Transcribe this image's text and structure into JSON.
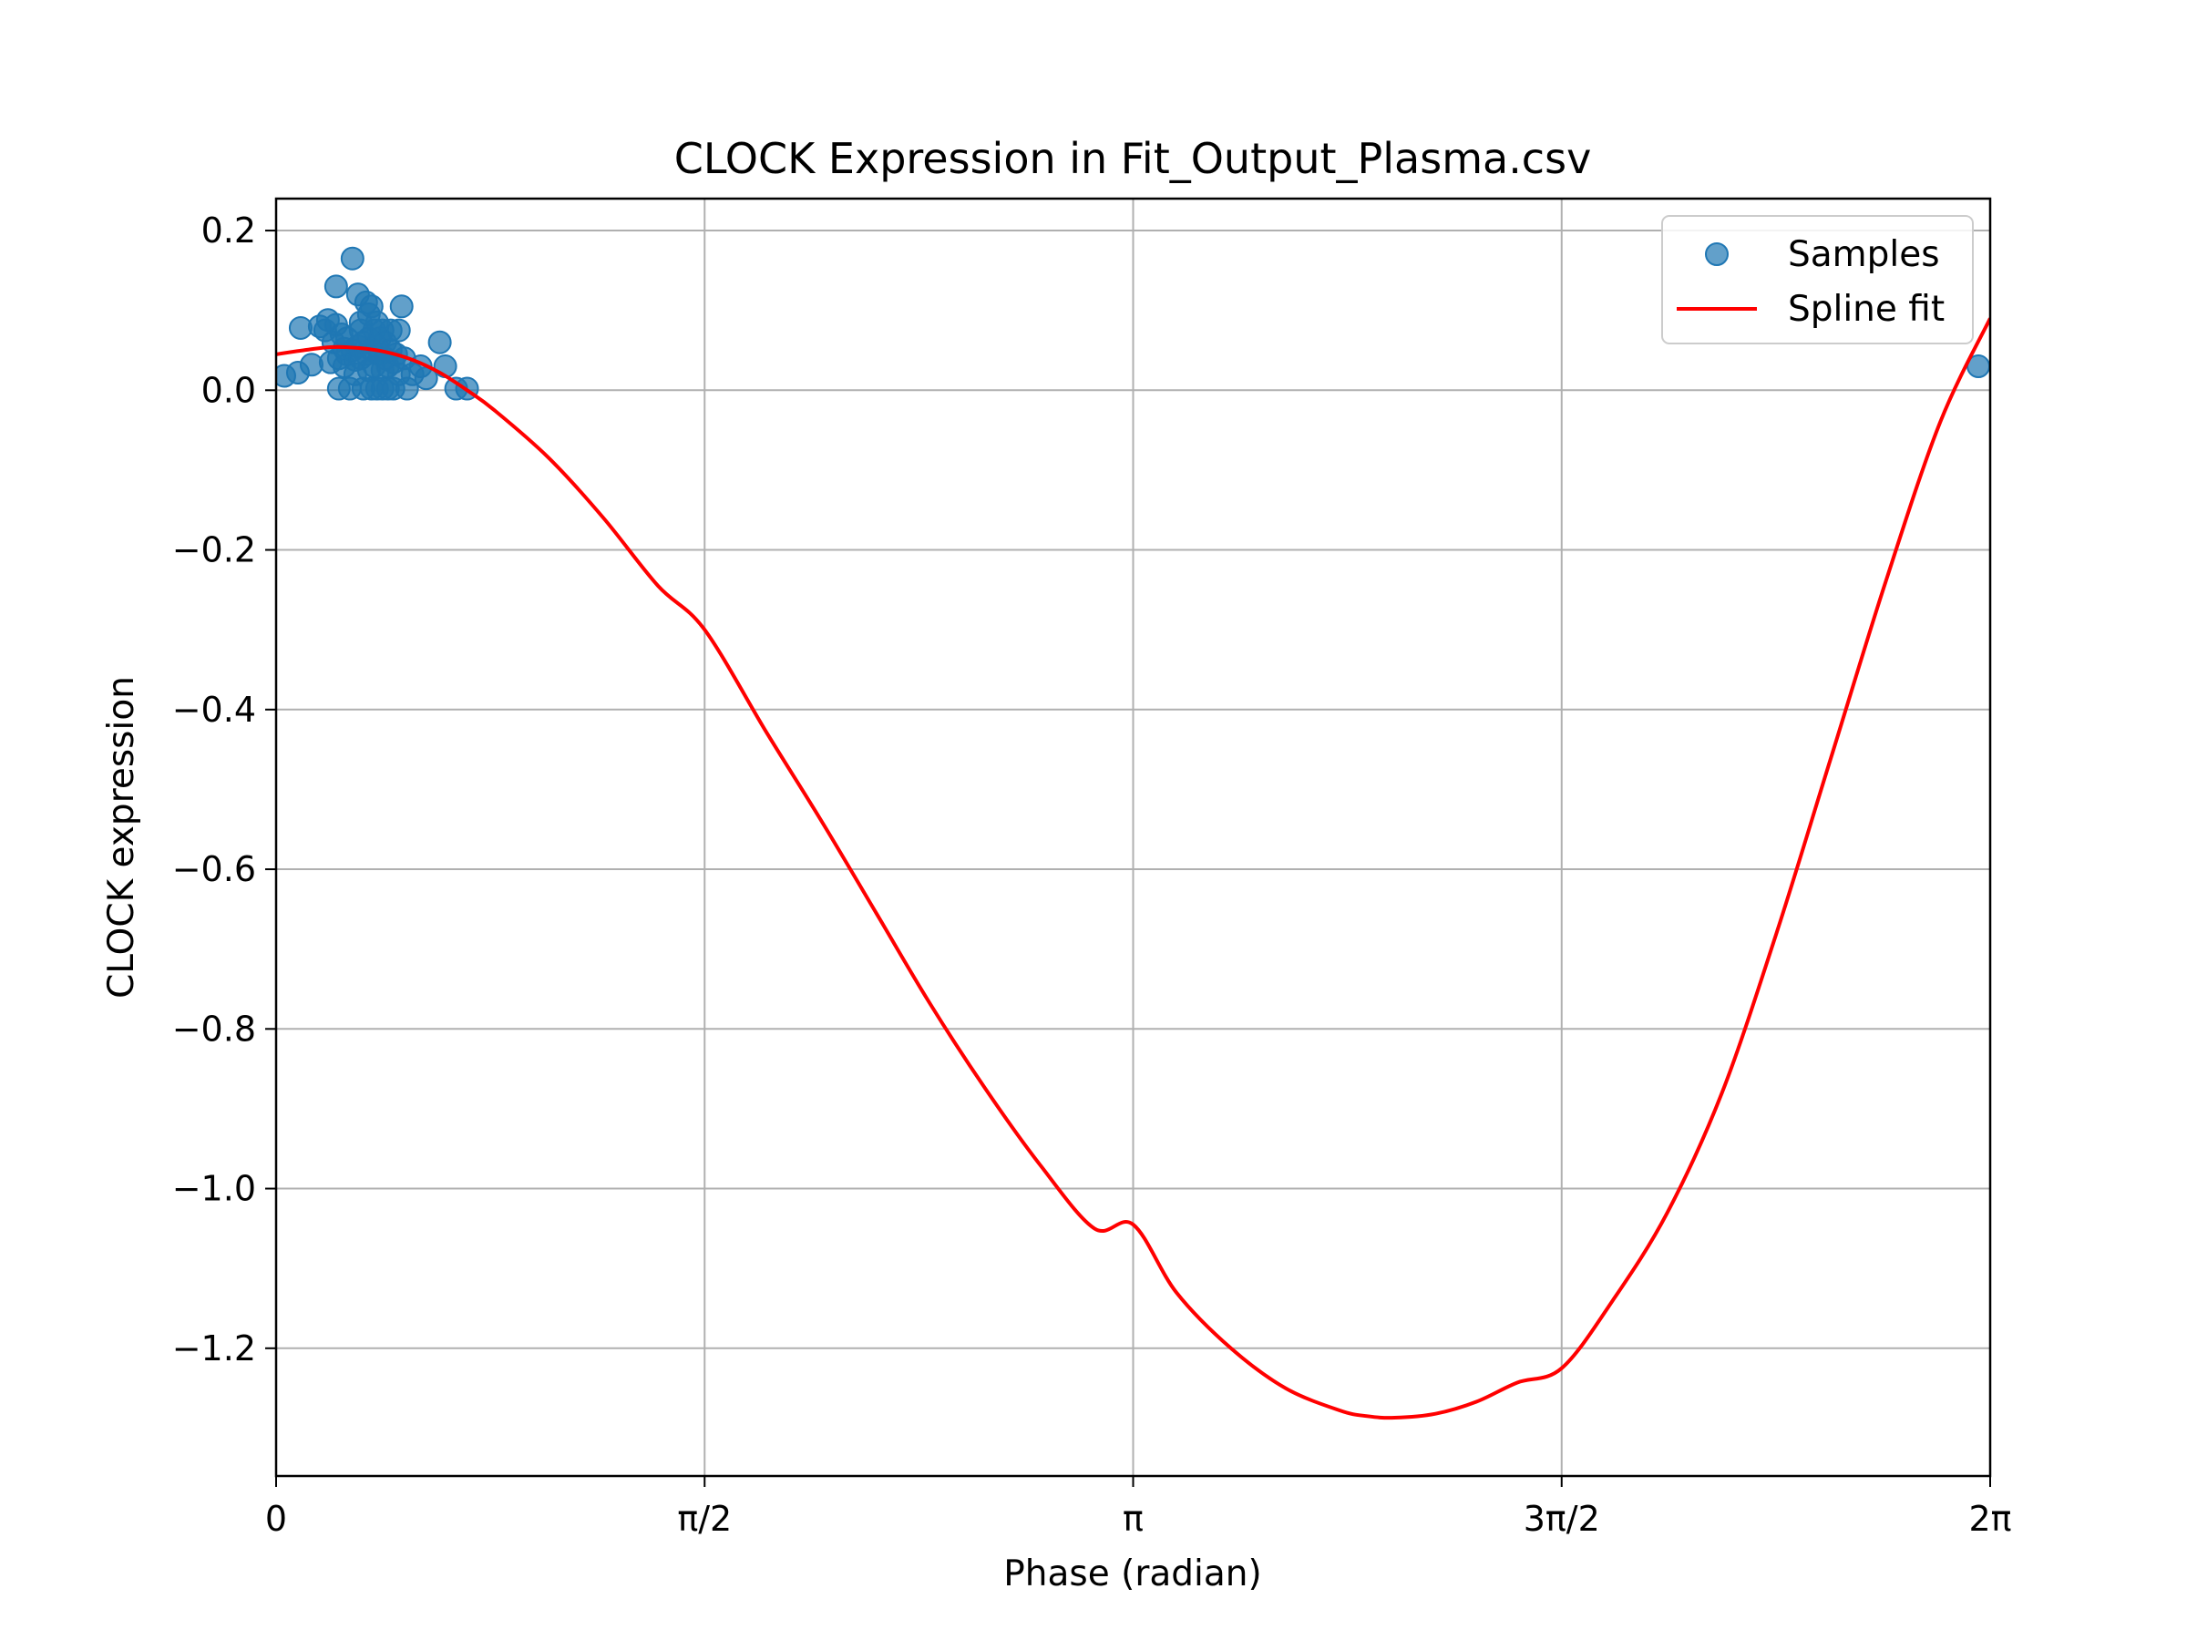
{
  "chart_data": {
    "type": "scatter",
    "title": "CLOCK Expression in Fit_Output_Plasma.csv",
    "xlabel": "Phase (radian)",
    "ylabel": "CLOCK expression",
    "xlim": [
      0,
      6.2832
    ],
    "ylim": [
      -1.36,
      0.24
    ],
    "grid": true,
    "legend_position": "top-right",
    "x_ticks": [
      {
        "value": 0,
        "label": "0"
      },
      {
        "value": 1.5708,
        "label": "π/2"
      },
      {
        "value": 3.1416,
        "label": "π"
      },
      {
        "value": 4.7124,
        "label": "3π/2"
      },
      {
        "value": 6.2832,
        "label": "2π"
      }
    ],
    "y_ticks": [
      {
        "value": 0.2,
        "label": "0.2"
      },
      {
        "value": 0.0,
        "label": "0.0"
      },
      {
        "value": -0.2,
        "label": "−0.2"
      },
      {
        "value": -0.4,
        "label": "−0.4"
      },
      {
        "value": -0.6,
        "label": "−0.6"
      },
      {
        "value": -0.8,
        "label": "−0.8"
      },
      {
        "value": -1.0,
        "label": "−1.0"
      },
      {
        "value": -1.2,
        "label": "−1.2"
      }
    ],
    "series": [
      {
        "name": "Samples",
        "kind": "scatter",
        "color": "#1f77b4",
        "points": [
          [
            0.03,
            0.018
          ],
          [
            0.08,
            0.022
          ],
          [
            0.09,
            0.078
          ],
          [
            0.13,
            0.032
          ],
          [
            0.16,
            0.08
          ],
          [
            0.18,
            0.075
          ],
          [
            0.19,
            0.088
          ],
          [
            0.2,
            0.035
          ],
          [
            0.21,
            0.06
          ],
          [
            0.22,
            0.082
          ],
          [
            0.22,
            0.13
          ],
          [
            0.23,
            0.002
          ],
          [
            0.23,
            0.04
          ],
          [
            0.24,
            0.07
          ],
          [
            0.25,
            0.052
          ],
          [
            0.25,
            0.03
          ],
          [
            0.26,
            0.065
          ],
          [
            0.26,
            0.045
          ],
          [
            0.27,
            0.002
          ],
          [
            0.28,
            0.05
          ],
          [
            0.28,
            0.165
          ],
          [
            0.29,
            0.038
          ],
          [
            0.29,
            0.02
          ],
          [
            0.3,
            0.055
          ],
          [
            0.3,
            0.12
          ],
          [
            0.31,
            0.075
          ],
          [
            0.31,
            0.04
          ],
          [
            0.31,
            0.085
          ],
          [
            0.32,
            0.002
          ],
          [
            0.32,
            0.06
          ],
          [
            0.33,
            0.045
          ],
          [
            0.33,
            0.11
          ],
          [
            0.34,
            0.025
          ],
          [
            0.34,
            0.095
          ],
          [
            0.34,
            0.065
          ],
          [
            0.35,
            0.002
          ],
          [
            0.35,
            0.05
          ],
          [
            0.35,
            0.105
          ],
          [
            0.36,
            0.075
          ],
          [
            0.36,
            0.03
          ],
          [
            0.37,
            0.002
          ],
          [
            0.37,
            0.055
          ],
          [
            0.37,
            0.085
          ],
          [
            0.38,
            0.045
          ],
          [
            0.38,
            0.065
          ],
          [
            0.39,
            0.002
          ],
          [
            0.39,
            0.025
          ],
          [
            0.39,
            0.075
          ],
          [
            0.4,
            0.04
          ],
          [
            0.4,
            0.06
          ],
          [
            0.41,
            0.002
          ],
          [
            0.41,
            0.03
          ],
          [
            0.42,
            0.05
          ],
          [
            0.42,
            0.075
          ],
          [
            0.43,
            0.002
          ],
          [
            0.43,
            0.035
          ],
          [
            0.44,
            0.045
          ],
          [
            0.45,
            0.075
          ],
          [
            0.45,
            0.02
          ],
          [
            0.46,
            0.105
          ],
          [
            0.47,
            0.04
          ],
          [
            0.48,
            0.002
          ],
          [
            0.5,
            0.02
          ],
          [
            0.53,
            0.03
          ],
          [
            0.55,
            0.015
          ],
          [
            0.6,
            0.06
          ],
          [
            0.62,
            0.03
          ],
          [
            0.66,
            0.002
          ],
          [
            0.7,
            0.002
          ],
          [
            6.24,
            0.03
          ]
        ]
      },
      {
        "name": "Spline fit",
        "kind": "line",
        "color": "#ff0000",
        "points": [
          [
            0.0,
            0.045
          ],
          [
            0.1,
            0.05
          ],
          [
            0.2,
            0.054
          ],
          [
            0.3,
            0.053
          ],
          [
            0.4,
            0.048
          ],
          [
            0.5,
            0.038
          ],
          [
            0.6,
            0.022
          ],
          [
            0.7,
            0.0
          ],
          [
            0.8,
            -0.025
          ],
          [
            1.0,
            -0.085
          ],
          [
            1.2,
            -0.16
          ],
          [
            1.4,
            -0.245
          ],
          [
            1.5708,
            -0.3
          ],
          [
            1.8,
            -0.43
          ],
          [
            2.0,
            -0.54
          ],
          [
            2.2,
            -0.655
          ],
          [
            2.4,
            -0.77
          ],
          [
            2.6,
            -0.875
          ],
          [
            2.8,
            -0.97
          ],
          [
            3.0,
            -1.05
          ],
          [
            3.1416,
            -1.045
          ],
          [
            3.3,
            -1.13
          ],
          [
            3.5,
            -1.2
          ],
          [
            3.7,
            -1.25
          ],
          [
            3.9,
            -1.278
          ],
          [
            4.0,
            -1.285
          ],
          [
            4.1,
            -1.287
          ],
          [
            4.25,
            -1.282
          ],
          [
            4.4,
            -1.267
          ],
          [
            4.55,
            -1.243
          ],
          [
            4.7124,
            -1.225
          ],
          [
            4.9,
            -1.14
          ],
          [
            5.1,
            -1.03
          ],
          [
            5.3,
            -0.88
          ],
          [
            5.5,
            -0.68
          ],
          [
            5.7,
            -0.46
          ],
          [
            5.9,
            -0.24
          ],
          [
            6.1,
            -0.04
          ],
          [
            6.2832,
            0.09
          ]
        ]
      }
    ]
  }
}
